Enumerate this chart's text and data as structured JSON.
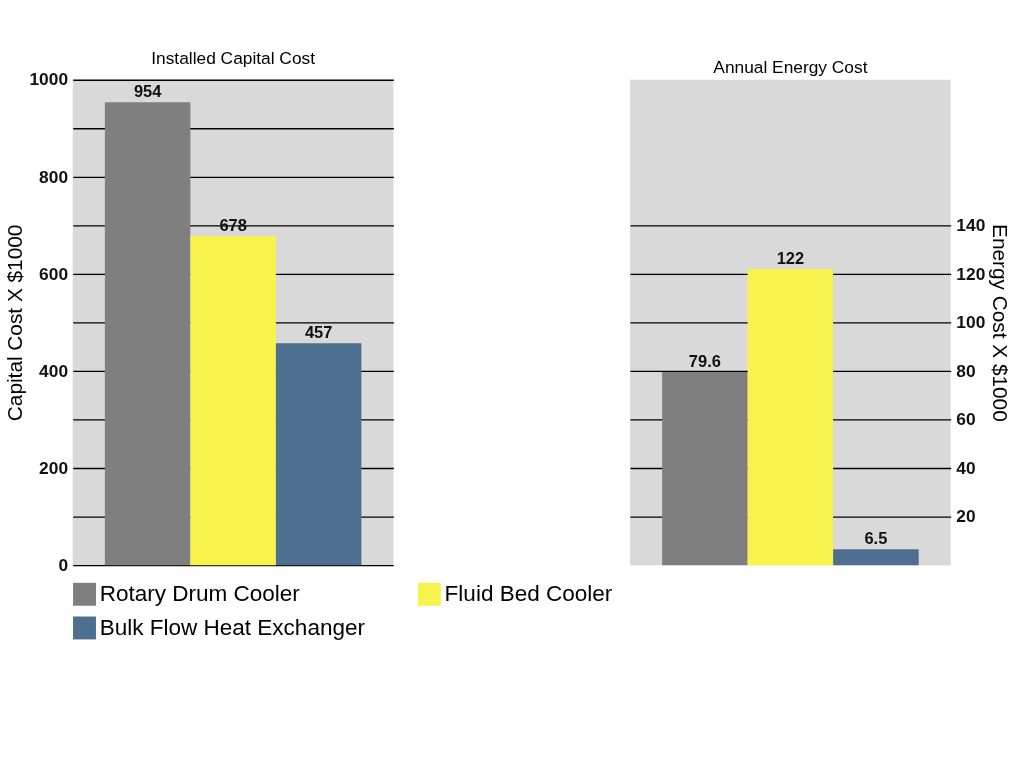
{
  "chart_data": [
    {
      "type": "bar",
      "title": "Installed Capital Cost",
      "ylabel": "Capital Cost X $1000",
      "categories": [
        null
      ],
      "series": [
        {
          "name": "Rotary Drum Cooler",
          "color": "#7f7f7f",
          "values": [
            954
          ]
        },
        {
          "name": "Fluid Bed Cooler",
          "color": "#f8f24c",
          "values": [
            678
          ]
        },
        {
          "name": "Bulk Flow Heat Exchanger",
          "color": "#4e6f90",
          "values": [
            457
          ]
        }
      ],
      "ylim": [
        0,
        1000
      ],
      "yticks": [
        0,
        {
          "value": 100,
          "label": null
        },
        200,
        {
          "value": 300,
          "label": null
        },
        400,
        {
          "value": 500,
          "label": null
        },
        600,
        {
          "value": 700,
          "label": null
        },
        800,
        {
          "value": 900,
          "label": null
        },
        1000
      ],
      "grid": "y",
      "data_labels": true,
      "legend": "bottom"
    },
    {
      "type": "bar",
      "title": "Annual Energy Cost",
      "ylabel": "Energy Cost X $1000",
      "categories": [
        null
      ],
      "series": [
        {
          "color": "#7f7f7f",
          "values": [
            79.6
          ]
        },
        {
          "color": "#f8f24c",
          "values": [
            122
          ]
        },
        {
          "color": "#4e6f90",
          "values": [
            6.5
          ]
        }
      ],
      "ylim": [
        0,
        200
      ],
      "yticks": [
        20,
        40,
        60,
        80,
        100,
        120,
        140
      ],
      "grid": "y",
      "data_labels": true
    }
  ]
}
